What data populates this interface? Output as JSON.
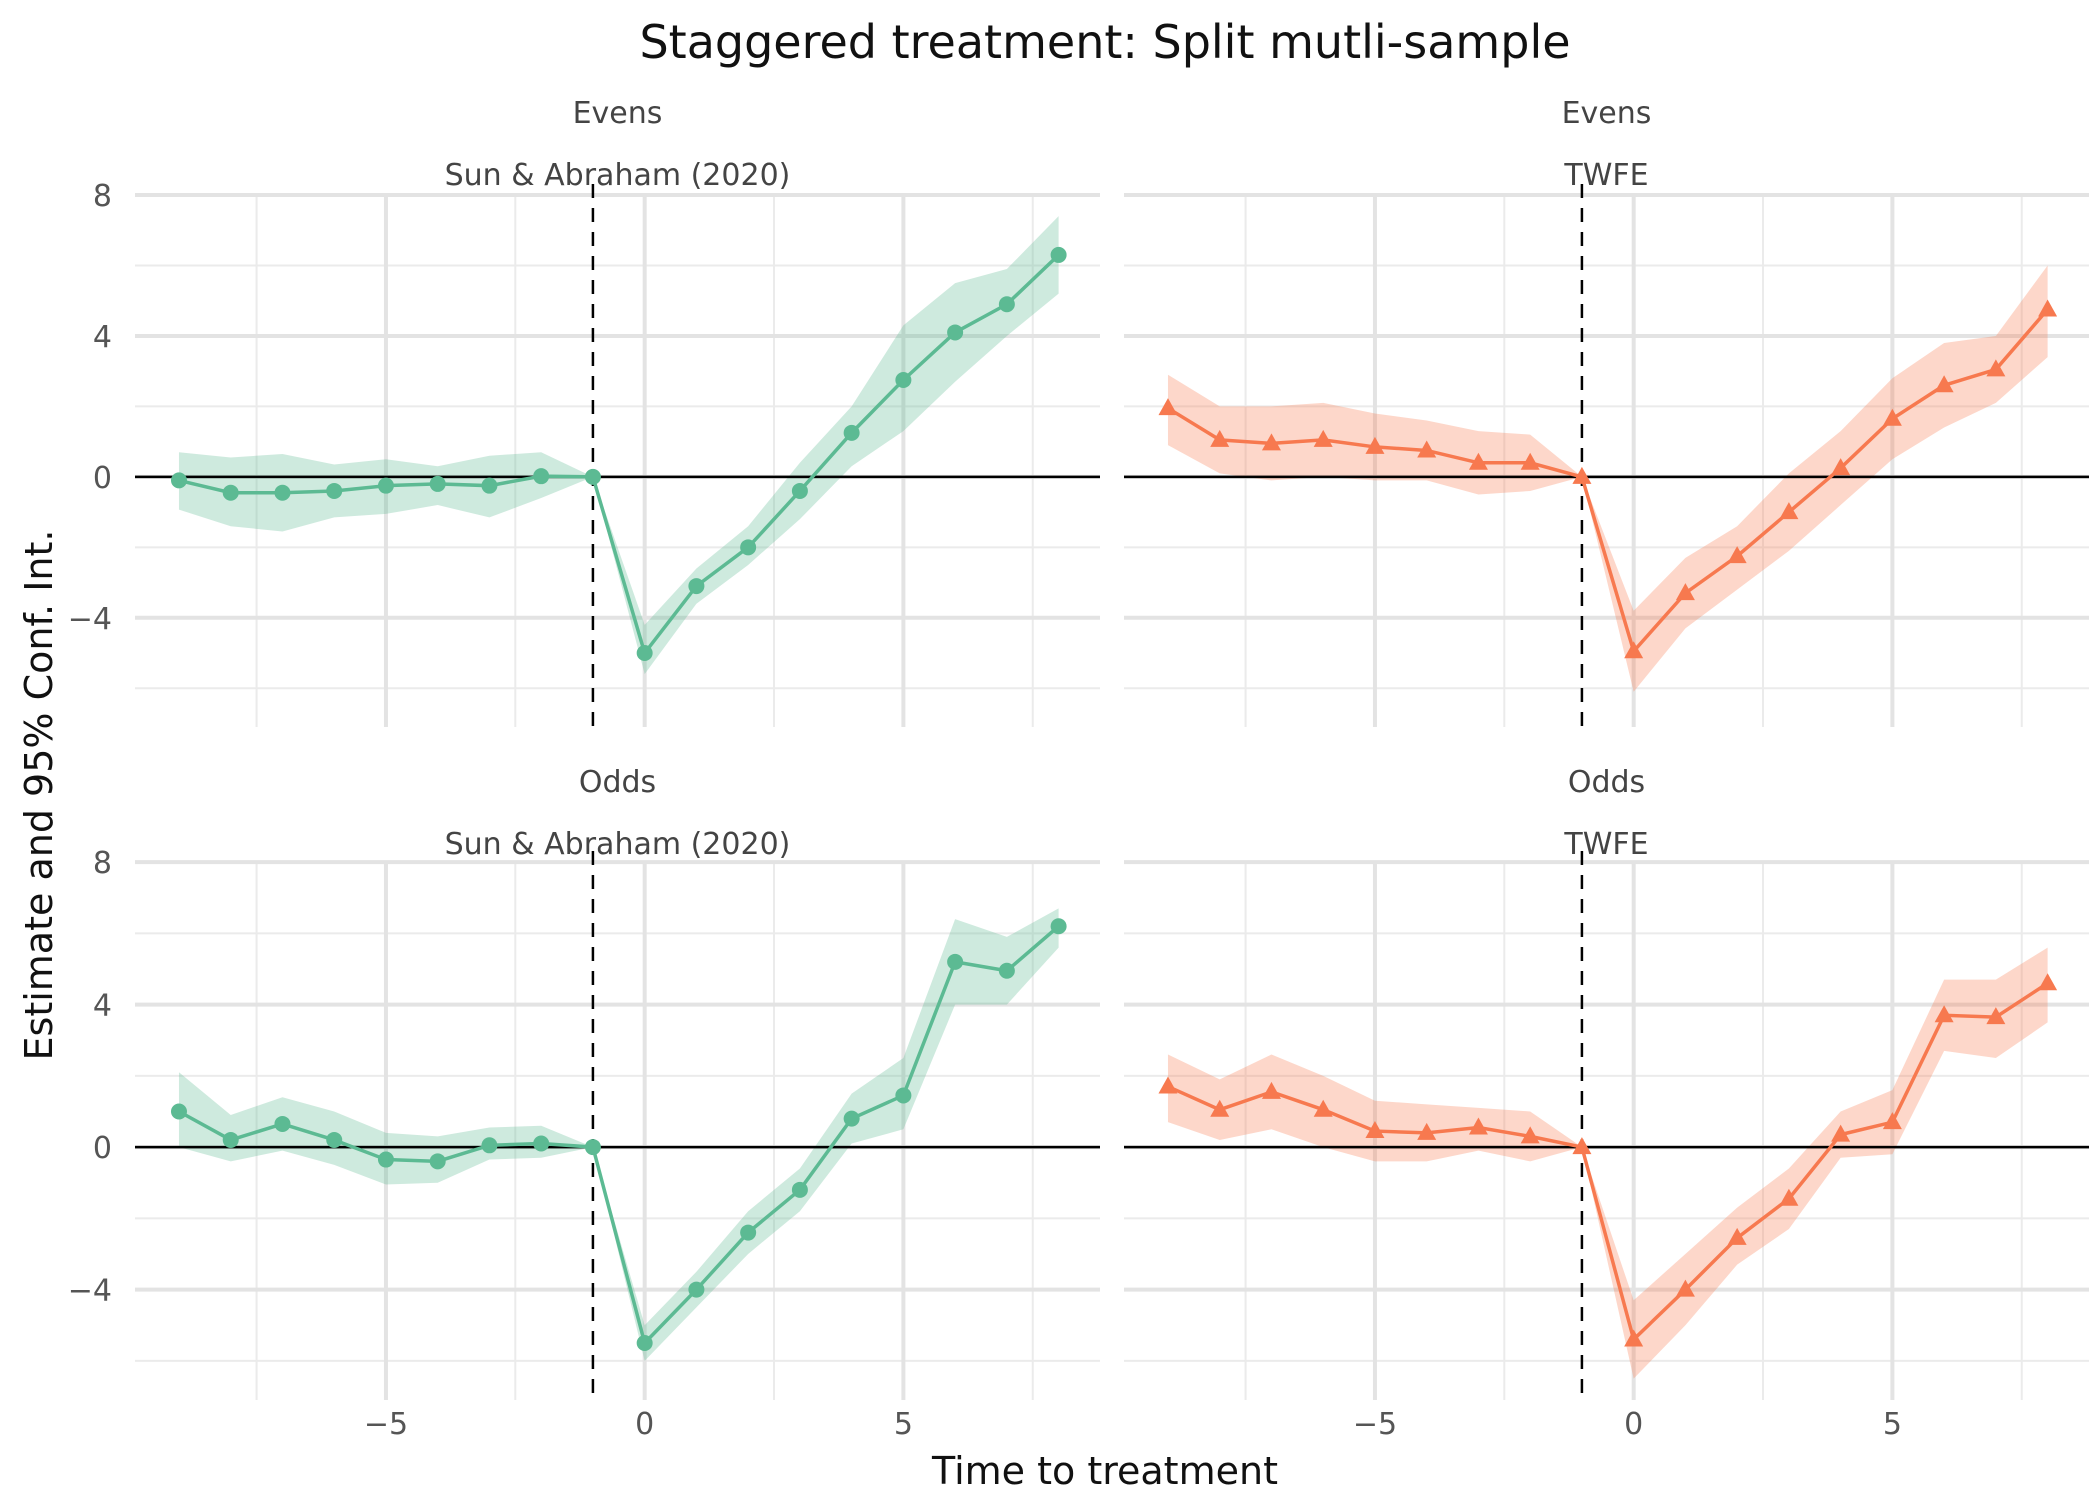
{
  "chart_data": {
    "type": "line",
    "title": "Staggered treatment: Split mutli-sample",
    "xlabel": "Time to treatment",
    "ylabel": "Estimate and 95% Conf. Int.",
    "x_ticks": [
      -5,
      0,
      5
    ],
    "y_ticks": [
      -4,
      0,
      4,
      8
    ],
    "xlim": [
      -9.85,
      8.8
    ],
    "ylim": [
      -7.1,
      8.2
    ],
    "grid": true,
    "reference_vline": -1,
    "reference_hline": 0,
    "x": [
      -9,
      -8,
      -7,
      -6,
      -5,
      -4,
      -3,
      -2,
      -1,
      0,
      1,
      2,
      3,
      4,
      5,
      6,
      7,
      8
    ],
    "panels": [
      {
        "row_label": "Evens",
        "col_label": "Sun & Abraham (2020)",
        "color": "#5cba93",
        "marker": "circle",
        "estimate": [
          -0.1,
          -0.45,
          -0.45,
          -0.4,
          -0.25,
          -0.2,
          -0.25,
          0.02,
          0,
          -5.0,
          -3.1,
          -2.0,
          -0.4,
          1.25,
          2.75,
          4.1,
          4.9,
          6.3
        ],
        "ci_low": [
          -0.93,
          -1.4,
          -1.55,
          -1.15,
          -1.05,
          -0.8,
          -1.15,
          -0.6,
          0,
          -5.6,
          -3.6,
          -2.5,
          -1.2,
          0.3,
          1.3,
          2.7,
          4.0,
          5.2
        ],
        "ci_high": [
          0.7,
          0.55,
          0.65,
          0.35,
          0.5,
          0.3,
          0.6,
          0.7,
          0,
          -4.2,
          -2.6,
          -1.4,
          0.4,
          2.0,
          4.3,
          5.5,
          5.9,
          7.4
        ]
      },
      {
        "row_label": "Evens",
        "col_label": "TWFE",
        "color": "#f7794f",
        "marker": "triangle",
        "estimate": [
          1.95,
          1.05,
          0.95,
          1.05,
          0.85,
          0.75,
          0.4,
          0.4,
          0,
          -4.95,
          -3.3,
          -2.25,
          -1.0,
          0.25,
          1.65,
          2.6,
          3.05,
          4.75
        ],
        "ci_low": [
          0.9,
          0.1,
          -0.1,
          0.0,
          -0.1,
          -0.1,
          -0.5,
          -0.4,
          0,
          -6.1,
          -4.3,
          -3.2,
          -2.1,
          -0.8,
          0.5,
          1.4,
          2.1,
          3.4
        ],
        "ci_high": [
          2.9,
          2.0,
          2.0,
          2.1,
          1.8,
          1.6,
          1.3,
          1.2,
          0,
          -3.8,
          -2.3,
          -1.4,
          0.1,
          1.3,
          2.8,
          3.8,
          4.0,
          6.0
        ]
      },
      {
        "row_label": "Odds",
        "col_label": "Sun & Abraham (2020)",
        "color": "#5cba93",
        "marker": "circle",
        "estimate": [
          1.0,
          0.2,
          0.65,
          0.2,
          -0.35,
          -0.4,
          0.05,
          0.1,
          0,
          -5.5,
          -4.0,
          -2.4,
          -1.2,
          0.8,
          1.45,
          5.2,
          4.95,
          6.2
        ],
        "ci_low": [
          0.0,
          -0.4,
          -0.1,
          -0.5,
          -1.05,
          -1.0,
          -0.35,
          -0.3,
          0,
          -6.0,
          -4.5,
          -3.0,
          -1.8,
          0.1,
          0.5,
          4.0,
          4.0,
          5.6
        ],
        "ci_high": [
          2.1,
          0.9,
          1.4,
          1.0,
          0.4,
          0.3,
          0.55,
          0.6,
          0,
          -5.0,
          -3.5,
          -1.8,
          -0.6,
          1.5,
          2.5,
          6.4,
          5.9,
          6.7
        ]
      },
      {
        "row_label": "Odds",
        "col_label": "TWFE",
        "color": "#f7794f",
        "marker": "triangle",
        "estimate": [
          1.7,
          1.05,
          1.55,
          1.05,
          0.45,
          0.4,
          0.55,
          0.3,
          0,
          -5.4,
          -4.0,
          -2.55,
          -1.45,
          0.35,
          0.7,
          3.7,
          3.65,
          4.6
        ],
        "ci_low": [
          0.7,
          0.2,
          0.5,
          0.0,
          -0.4,
          -0.4,
          -0.1,
          -0.4,
          0,
          -6.5,
          -5.0,
          -3.3,
          -2.3,
          -0.3,
          -0.2,
          2.7,
          2.5,
          3.5
        ],
        "ci_high": [
          2.6,
          1.9,
          2.6,
          2.0,
          1.3,
          1.2,
          1.1,
          1.0,
          0,
          -4.3,
          -3.0,
          -1.7,
          -0.6,
          1.0,
          1.6,
          4.7,
          4.7,
          5.6
        ]
      }
    ]
  }
}
